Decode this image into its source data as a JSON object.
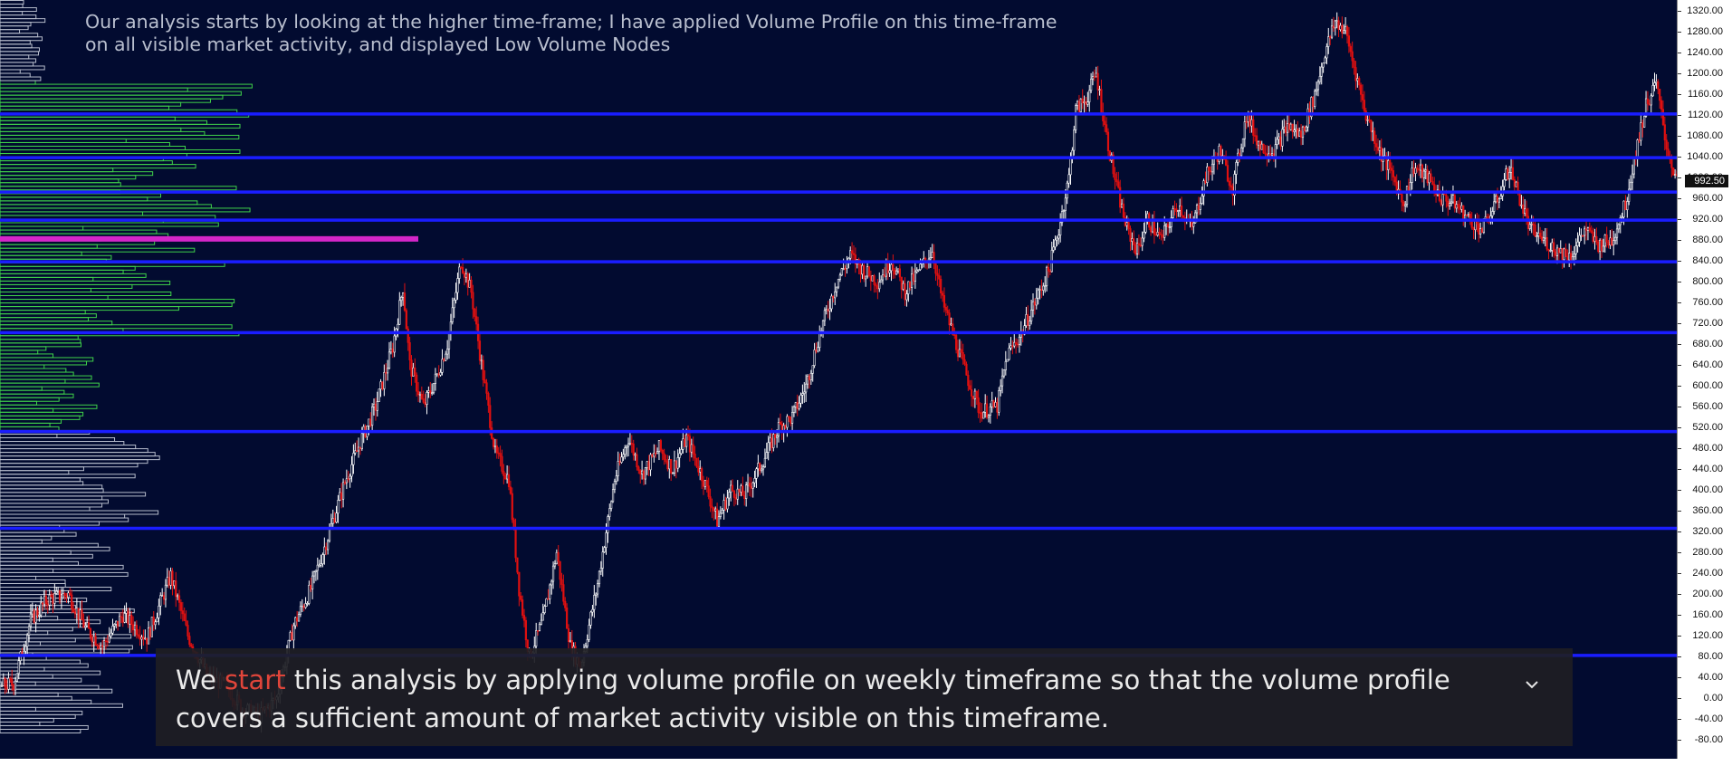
{
  "annotation": {
    "line1": "Our analysis starts by looking at the higher time-frame; I have applied Volume Profile on this time-frame",
    "line2": "on all visible market activity, and displayed Low Volume Nodes"
  },
  "caption": {
    "before": "We",
    "highlight": "start",
    "after_line1": "this analysis by applying volume profile on weekly timeframe so that the volume profile",
    "line2": "covers a sufficient amount of market activity visible on this timeframe.",
    "collapse_icon": "chevron-down-icon"
  },
  "price_axis": {
    "ticks": [
      "1320.00",
      "1280.00",
      "1240.00",
      "1200.00",
      "1160.00",
      "1120.00",
      "1080.00",
      "1040.00",
      "1000.00",
      "960.00",
      "920.00",
      "880.00",
      "840.00",
      "800.00",
      "760.00",
      "720.00",
      "680.00",
      "640.00",
      "600.00",
      "560.00",
      "520.00",
      "480.00",
      "440.00",
      "400.00",
      "360.00",
      "320.00",
      "280.00",
      "240.00",
      "200.00",
      "160.00",
      "120.00",
      "80.00",
      "40.00",
      "0.00",
      "-40.00",
      "-80.00"
    ],
    "tick_values": [
      1320,
      1280,
      1240,
      1200,
      1160,
      1120,
      1080,
      1040,
      1000,
      960,
      920,
      880,
      840,
      800,
      760,
      720,
      680,
      640,
      600,
      560,
      520,
      480,
      440,
      400,
      360,
      320,
      280,
      240,
      200,
      160,
      120,
      80,
      40,
      0,
      -40,
      -80
    ],
    "last_price": "992.50"
  },
  "chart_data": {
    "type": "candlestick",
    "ylim": [
      -80,
      1340
    ],
    "low_volume_nodes": [
      1122,
      1038,
      972,
      918,
      838,
      702,
      512,
      326,
      82
    ],
    "poc_level": 882,
    "profile_color_value_area": "#3fd24a",
    "profile_color_outside": "#b6bccb",
    "poc_color": "#d526c9",
    "lvn_color": "#1a1dff",
    "up_color": "#ffffff",
    "down_color": "#e01010",
    "close_path": [
      [
        0,
        22
      ],
      [
        8,
        28
      ],
      [
        18,
        150
      ],
      [
        28,
        190
      ],
      [
        40,
        200
      ],
      [
        50,
        135
      ],
      [
        60,
        100
      ],
      [
        72,
        160
      ],
      [
        86,
        115
      ],
      [
        100,
        235
      ],
      [
        110,
        120
      ],
      [
        122,
        40
      ],
      [
        132,
        25
      ],
      [
        142,
        -20
      ],
      [
        152,
        -35
      ],
      [
        162,
        0
      ],
      [
        172,
        140
      ],
      [
        182,
        210
      ],
      [
        192,
        310
      ],
      [
        202,
        415
      ],
      [
        212,
        500
      ],
      [
        220,
        560
      ],
      [
        230,
        675
      ],
      [
        236,
        790
      ],
      [
        240,
        640
      ],
      [
        248,
        560
      ],
      [
        256,
        620
      ],
      [
        262,
        680
      ],
      [
        270,
        840
      ],
      [
        276,
        780
      ],
      [
        282,
        640
      ],
      [
        290,
        470
      ],
      [
        298,
        420
      ],
      [
        304,
        210
      ],
      [
        310,
        80
      ],
      [
        318,
        150
      ],
      [
        326,
        280
      ],
      [
        334,
        100
      ],
      [
        340,
        60
      ],
      [
        350,
        220
      ],
      [
        360,
        420
      ],
      [
        368,
        500
      ],
      [
        376,
        430
      ],
      [
        386,
        480
      ],
      [
        394,
        440
      ],
      [
        402,
        500
      ],
      [
        412,
        420
      ],
      [
        420,
        340
      ],
      [
        428,
        400
      ],
      [
        436,
        390
      ],
      [
        446,
        450
      ],
      [
        456,
        520
      ],
      [
        464,
        540
      ],
      [
        472,
        600
      ],
      [
        480,
        700
      ],
      [
        490,
        800
      ],
      [
        498,
        850
      ],
      [
        506,
        820
      ],
      [
        514,
        800
      ],
      [
        522,
        840
      ],
      [
        530,
        780
      ],
      [
        538,
        820
      ],
      [
        546,
        860
      ],
      [
        552,
        760
      ],
      [
        560,
        680
      ],
      [
        566,
        620
      ],
      [
        574,
        550
      ],
      [
        584,
        560
      ],
      [
        590,
        660
      ],
      [
        598,
        700
      ],
      [
        606,
        760
      ],
      [
        614,
        820
      ],
      [
        620,
        900
      ],
      [
        626,
        1000
      ],
      [
        630,
        1130
      ],
      [
        636,
        1150
      ],
      [
        642,
        1200
      ],
      [
        648,
        1080
      ],
      [
        654,
        980
      ],
      [
        660,
        900
      ],
      [
        666,
        860
      ],
      [
        672,
        920
      ],
      [
        680,
        880
      ],
      [
        690,
        950
      ],
      [
        698,
        900
      ],
      [
        706,
        1000
      ],
      [
        714,
        1050
      ],
      [
        722,
        980
      ],
      [
        730,
        1120
      ],
      [
        738,
        1060
      ],
      [
        746,
        1050
      ],
      [
        754,
        1100
      ],
      [
        762,
        1080
      ],
      [
        770,
        1160
      ],
      [
        776,
        1240
      ],
      [
        782,
        1300
      ],
      [
        788,
        1280
      ],
      [
        794,
        1200
      ],
      [
        800,
        1120
      ],
      [
        808,
        1050
      ],
      [
        816,
        1000
      ],
      [
        822,
        950
      ],
      [
        828,
        1020
      ],
      [
        836,
        1000
      ],
      [
        844,
        960
      ],
      [
        852,
        950
      ],
      [
        860,
        920
      ],
      [
        868,
        900
      ],
      [
        876,
        950
      ],
      [
        884,
        1020
      ],
      [
        890,
        960
      ],
      [
        896,
        900
      ],
      [
        904,
        880
      ],
      [
        912,
        860
      ],
      [
        920,
        850
      ],
      [
        928,
        900
      ],
      [
        936,
        870
      ],
      [
        944,
        880
      ],
      [
        952,
        950
      ],
      [
        958,
        1050
      ],
      [
        964,
        1140
      ],
      [
        970,
        1180
      ],
      [
        976,
        1060
      ],
      [
        982,
        992
      ]
    ]
  }
}
